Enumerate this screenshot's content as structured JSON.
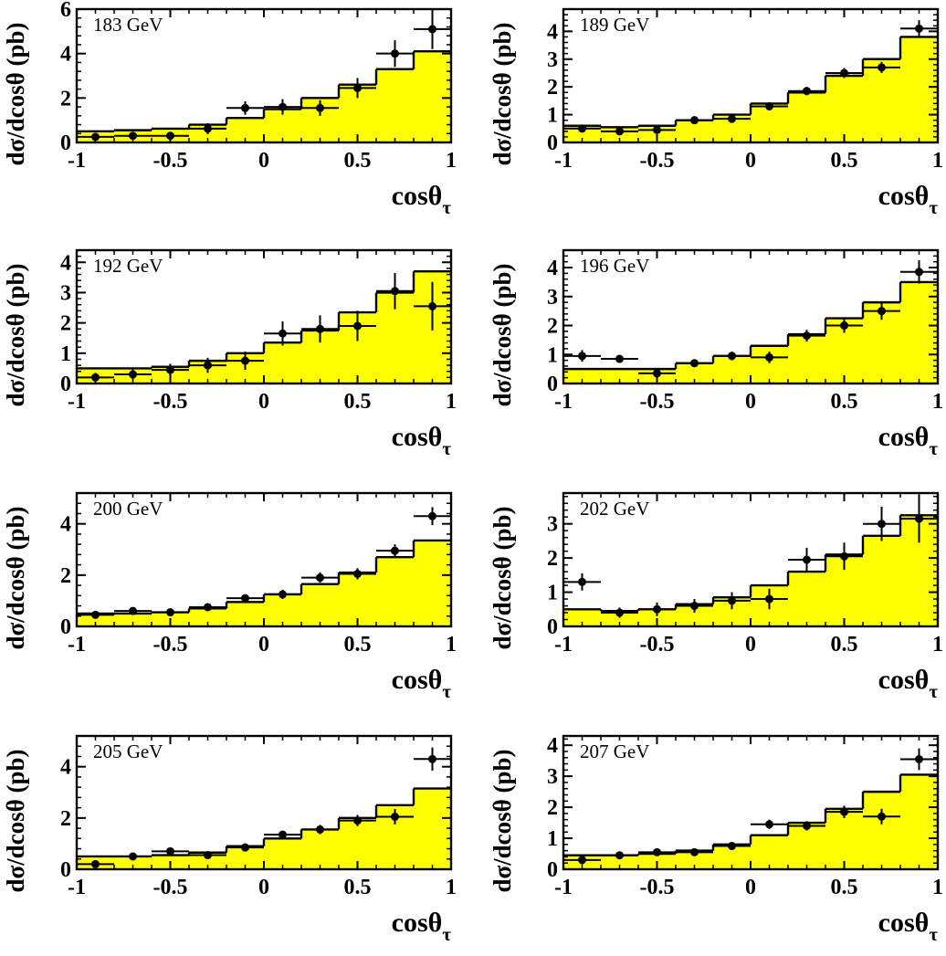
{
  "figure": {
    "ylabel": "dσ/dcosθ (pb)",
    "xlabel_main": "cosθ",
    "xlabel_sub": "τ"
  },
  "chart_data": [
    {
      "type": "bar",
      "title": "183 GeV",
      "bin_edges": [
        -1,
        -0.8,
        -0.6,
        -0.4,
        -0.2,
        0,
        0.2,
        0.4,
        0.6,
        0.8,
        1
      ],
      "xlim": [
        -1,
        1
      ],
      "ylim": [
        0,
        6
      ],
      "xticks": [
        "-1",
        "-0.5",
        "0",
        "0.5",
        "1"
      ],
      "yticks": [
        0,
        2,
        4,
        6
      ],
      "series": [
        {
          "kind": "histogram",
          "color": "#ffff00",
          "values": [
            0.5,
            0.55,
            0.62,
            0.8,
            1.1,
            1.5,
            2.0,
            2.6,
            3.3,
            4.1
          ]
        },
        {
          "kind": "points",
          "values": [
            0.25,
            0.3,
            0.3,
            0.62,
            1.55,
            1.6,
            1.55,
            2.45,
            4.0,
            5.1
          ],
          "errors": [
            0.15,
            0.15,
            0.15,
            0.25,
            0.3,
            0.35,
            0.35,
            0.45,
            0.6,
            0.9
          ]
        }
      ]
    },
    {
      "type": "bar",
      "title": "189 GeV",
      "bin_edges": [
        -1,
        -0.8,
        -0.6,
        -0.4,
        -0.2,
        0,
        0.2,
        0.4,
        0.6,
        0.8,
        1
      ],
      "xlim": [
        -1,
        1
      ],
      "ylim": [
        0,
        4.8
      ],
      "xticks": [
        "-1",
        "-0.5",
        "0",
        "0.5",
        "1"
      ],
      "yticks": [
        0,
        1,
        2,
        3,
        4
      ],
      "series": [
        {
          "kind": "histogram",
          "color": "#ffff00",
          "values": [
            0.6,
            0.55,
            0.6,
            0.8,
            1.0,
            1.4,
            1.8,
            2.4,
            3.0,
            3.8
          ]
        },
        {
          "kind": "points",
          "values": [
            0.5,
            0.4,
            0.45,
            0.8,
            0.85,
            1.3,
            1.85,
            2.5,
            2.7,
            4.1
          ],
          "errors": [
            0.1,
            0.1,
            0.1,
            0.1,
            0.12,
            0.15,
            0.15,
            0.18,
            0.2,
            0.3
          ]
        }
      ]
    },
    {
      "type": "bar",
      "title": "192 GeV",
      "bin_edges": [
        -1,
        -0.8,
        -0.6,
        -0.4,
        -0.2,
        0,
        0.2,
        0.4,
        0.6,
        0.8,
        1
      ],
      "xlim": [
        -1,
        1
      ],
      "ylim": [
        0,
        4.4
      ],
      "xticks": [
        "-1",
        "-0.5",
        "0",
        "0.5",
        "1"
      ],
      "yticks": [
        0,
        1,
        2,
        3,
        4
      ],
      "series": [
        {
          "kind": "histogram",
          "color": "#ffff00",
          "values": [
            0.5,
            0.5,
            0.55,
            0.75,
            1.0,
            1.35,
            1.75,
            2.35,
            3.0,
            3.7
          ]
        },
        {
          "kind": "points",
          "values": [
            0.2,
            0.3,
            0.45,
            0.6,
            0.75,
            1.65,
            1.8,
            1.9,
            3.05,
            2.55
          ],
          "errors": [
            0.15,
            0.2,
            0.2,
            0.25,
            0.3,
            0.4,
            0.45,
            0.5,
            0.6,
            0.8
          ]
        }
      ]
    },
    {
      "type": "bar",
      "title": "196 GeV",
      "bin_edges": [
        -1,
        -0.8,
        -0.6,
        -0.4,
        -0.2,
        0,
        0.2,
        0.4,
        0.6,
        0.8,
        1
      ],
      "xlim": [
        -1,
        1
      ],
      "ylim": [
        0,
        4.6
      ],
      "xticks": [
        "-1",
        "-0.5",
        "0",
        "0.5",
        "1"
      ],
      "yticks": [
        0,
        1,
        2,
        3,
        4
      ],
      "series": [
        {
          "kind": "histogram",
          "color": "#ffff00",
          "values": [
            0.5,
            0.5,
            0.5,
            0.7,
            0.95,
            1.3,
            1.7,
            2.25,
            2.8,
            3.5
          ]
        },
        {
          "kind": "points",
          "values": [
            0.95,
            0.85,
            0.35,
            0.7,
            0.95,
            0.9,
            1.65,
            2.0,
            2.5,
            3.85
          ],
          "errors": [
            0.2,
            0.1,
            0.1,
            0.12,
            0.15,
            0.2,
            0.2,
            0.25,
            0.3,
            0.4
          ]
        }
      ]
    },
    {
      "type": "bar",
      "title": "200 GeV",
      "bin_edges": [
        -1,
        -0.8,
        -0.6,
        -0.4,
        -0.2,
        0,
        0.2,
        0.4,
        0.6,
        0.8,
        1
      ],
      "xlim": [
        -1,
        1
      ],
      "ylim": [
        0,
        5.2
      ],
      "xticks": [
        "-1",
        "-0.5",
        "0",
        "0.5",
        "1"
      ],
      "yticks": [
        0,
        2,
        4
      ],
      "series": [
        {
          "kind": "histogram",
          "color": "#ffff00",
          "values": [
            0.5,
            0.5,
            0.55,
            0.7,
            0.95,
            1.25,
            1.65,
            2.1,
            2.7,
            3.35
          ]
        },
        {
          "kind": "points",
          "values": [
            0.45,
            0.6,
            0.55,
            0.75,
            1.1,
            1.25,
            1.9,
            2.05,
            2.95,
            4.3
          ],
          "errors": [
            0.1,
            0.1,
            0.1,
            0.12,
            0.15,
            0.18,
            0.2,
            0.22,
            0.25,
            0.35
          ]
        }
      ]
    },
    {
      "type": "bar",
      "title": "202 GeV",
      "bin_edges": [
        -1,
        -0.8,
        -0.6,
        -0.4,
        -0.2,
        0,
        0.2,
        0.4,
        0.6,
        0.8,
        1
      ],
      "xlim": [
        -1,
        1
      ],
      "ylim": [
        0,
        3.9
      ],
      "xticks": [
        "-1",
        "-0.5",
        "0",
        "0.5",
        "1"
      ],
      "yticks": [
        0,
        1,
        2,
        3
      ],
      "series": [
        {
          "kind": "histogram",
          "color": "#ffff00",
          "values": [
            0.5,
            0.45,
            0.5,
            0.65,
            0.85,
            1.2,
            1.6,
            2.1,
            2.65,
            3.25
          ]
        },
        {
          "kind": "points",
          "values": [
            1.3,
            0.4,
            0.5,
            0.6,
            0.75,
            0.8,
            1.95,
            2.05,
            3.0,
            3.15
          ],
          "errors": [
            0.25,
            0.15,
            0.2,
            0.2,
            0.25,
            0.3,
            0.35,
            0.4,
            0.5,
            0.7
          ]
        }
      ]
    },
    {
      "type": "bar",
      "title": "205 GeV",
      "bin_edges": [
        -1,
        -0.8,
        -0.6,
        -0.4,
        -0.2,
        0,
        0.2,
        0.4,
        0.6,
        0.8,
        1
      ],
      "xlim": [
        -1,
        1
      ],
      "ylim": [
        0,
        5.2
      ],
      "xticks": [
        "-1",
        "-0.5",
        "0",
        "0.5",
        "1"
      ],
      "yticks": [
        0,
        2,
        4
      ],
      "series": [
        {
          "kind": "histogram",
          "color": "#ffff00",
          "values": [
            0.5,
            0.5,
            0.55,
            0.65,
            0.9,
            1.2,
            1.55,
            2.0,
            2.5,
            3.15
          ]
        },
        {
          "kind": "points",
          "values": [
            0.2,
            0.5,
            0.7,
            0.55,
            0.85,
            1.35,
            1.55,
            1.9,
            2.05,
            4.3
          ],
          "errors": [
            0.1,
            0.1,
            0.1,
            0.1,
            0.12,
            0.15,
            0.18,
            0.22,
            0.3,
            0.45
          ]
        }
      ]
    },
    {
      "type": "bar",
      "title": "207 GeV",
      "bin_edges": [
        -1,
        -0.8,
        -0.6,
        -0.4,
        -0.2,
        0,
        0.2,
        0.4,
        0.6,
        0.8,
        1
      ],
      "xlim": [
        -1,
        1
      ],
      "ylim": [
        0,
        4.3
      ],
      "xticks": [
        "-1",
        "-0.5",
        "0",
        "0.5",
        "1"
      ],
      "yticks": [
        0,
        1,
        2,
        3,
        4
      ],
      "series": [
        {
          "kind": "histogram",
          "color": "#ffff00",
          "values": [
            0.45,
            0.45,
            0.5,
            0.6,
            0.8,
            1.1,
            1.5,
            1.95,
            2.5,
            3.05
          ]
        },
        {
          "kind": "points",
          "values": [
            0.3,
            0.45,
            0.55,
            0.55,
            0.75,
            1.45,
            1.4,
            1.85,
            1.7,
            3.55
          ],
          "errors": [
            0.15,
            0.08,
            0.08,
            0.08,
            0.1,
            0.15,
            0.15,
            0.2,
            0.25,
            0.35
          ]
        }
      ]
    }
  ]
}
